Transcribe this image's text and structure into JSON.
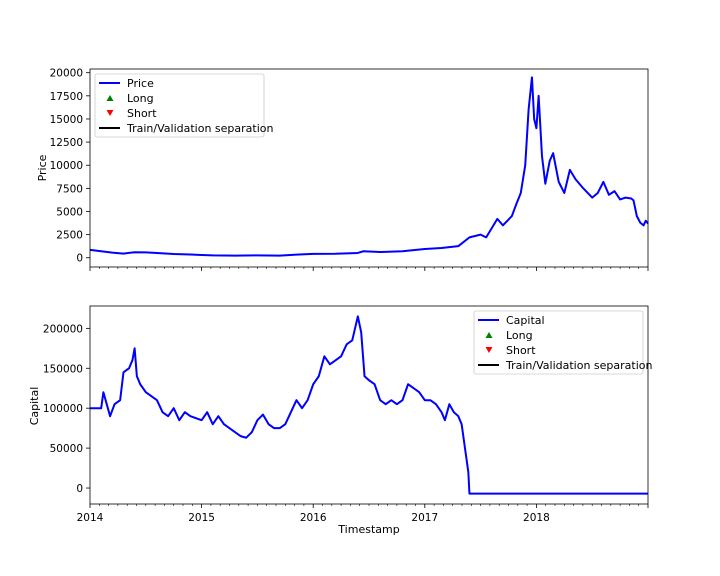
{
  "chart_data": [
    {
      "type": "line",
      "panel": "top",
      "ylabel": "Price",
      "xlabel": "",
      "xlim": [
        2014.0,
        2019.0
      ],
      "ylim": [
        -1000,
        20400
      ],
      "yticks": [
        "0",
        "2500",
        "5000",
        "7500",
        "10000",
        "12500",
        "15000",
        "17500",
        "20000"
      ],
      "ytick_values": [
        0,
        2500,
        5000,
        7500,
        10000,
        12500,
        15000,
        17500,
        20000
      ],
      "legend_position": "upper-left",
      "legend": [
        "Price",
        "Long",
        "Short",
        "Train/Validation separation"
      ],
      "series": [
        {
          "name": "Price",
          "color": "#0000ff",
          "points": [
            [
              2014.0,
              850
            ],
            [
              2014.1,
              700
            ],
            [
              2014.2,
              550
            ],
            [
              2014.3,
              450
            ],
            [
              2014.4,
              600
            ],
            [
              2014.5,
              580
            ],
            [
              2014.6,
              520
            ],
            [
              2014.75,
              400
            ],
            [
              2014.9,
              350
            ],
            [
              2015.0,
              300
            ],
            [
              2015.1,
              250
            ],
            [
              2015.3,
              230
            ],
            [
              2015.5,
              260
            ],
            [
              2015.7,
              230
            ],
            [
              2015.85,
              340
            ],
            [
              2016.0,
              420
            ],
            [
              2016.2,
              430
            ],
            [
              2016.4,
              520
            ],
            [
              2016.45,
              700
            ],
            [
              2016.6,
              620
            ],
            [
              2016.8,
              700
            ],
            [
              2017.0,
              950
            ],
            [
              2017.15,
              1050
            ],
            [
              2017.3,
              1250
            ],
            [
              2017.4,
              2200
            ],
            [
              2017.5,
              2500
            ],
            [
              2017.55,
              2200
            ],
            [
              2017.6,
              3200
            ],
            [
              2017.65,
              4200
            ],
            [
              2017.7,
              3500
            ],
            [
              2017.78,
              4500
            ],
            [
              2017.82,
              5800
            ],
            [
              2017.86,
              7000
            ],
            [
              2017.9,
              10000
            ],
            [
              2017.93,
              16000
            ],
            [
              2017.96,
              19500
            ],
            [
              2017.98,
              15000
            ],
            [
              2018.0,
              14000
            ],
            [
              2018.02,
              17500
            ],
            [
              2018.05,
              11000
            ],
            [
              2018.08,
              8000
            ],
            [
              2018.12,
              10500
            ],
            [
              2018.15,
              11300
            ],
            [
              2018.2,
              8200
            ],
            [
              2018.25,
              7000
            ],
            [
              2018.3,
              9500
            ],
            [
              2018.35,
              8500
            ],
            [
              2018.42,
              7500
            ],
            [
              2018.5,
              6500
            ],
            [
              2018.55,
              7000
            ],
            [
              2018.6,
              8200
            ],
            [
              2018.65,
              6800
            ],
            [
              2018.7,
              7200
            ],
            [
              2018.75,
              6300
            ],
            [
              2018.8,
              6500
            ],
            [
              2018.85,
              6400
            ],
            [
              2018.87,
              6200
            ],
            [
              2018.9,
              4500
            ],
            [
              2018.93,
              3800
            ],
            [
              2018.96,
              3500
            ],
            [
              2018.98,
              4000
            ],
            [
              2019.0,
              3700
            ]
          ]
        }
      ]
    },
    {
      "type": "line",
      "panel": "bottom",
      "ylabel": "Capital",
      "xlabel": "Timestamp",
      "xlim": [
        2014.0,
        2019.0
      ],
      "ylim": [
        -20000,
        228000
      ],
      "xticks": [
        "2014",
        "2015",
        "2016",
        "2017",
        "2018"
      ],
      "xtick_values": [
        2014,
        2015,
        2016,
        2017,
        2018
      ],
      "yticks": [
        "0",
        "50000",
        "100000",
        "150000",
        "200000"
      ],
      "ytick_values": [
        0,
        50000,
        100000,
        150000,
        200000
      ],
      "legend_position": "upper-right",
      "legend": [
        "Capital",
        "Long",
        "Short",
        "Train/Validation separation"
      ],
      "series": [
        {
          "name": "Capital",
          "color": "#0000ff",
          "points": [
            [
              2014.0,
              100000
            ],
            [
              2014.1,
              100000
            ],
            [
              2014.12,
              120000
            ],
            [
              2014.15,
              105000
            ],
            [
              2014.18,
              90000
            ],
            [
              2014.22,
              105000
            ],
            [
              2014.27,
              110000
            ],
            [
              2014.3,
              145000
            ],
            [
              2014.35,
              150000
            ],
            [
              2014.38,
              160000
            ],
            [
              2014.4,
              175000
            ],
            [
              2014.42,
              140000
            ],
            [
              2014.45,
              130000
            ],
            [
              2014.5,
              120000
            ],
            [
              2014.55,
              115000
            ],
            [
              2014.6,
              110000
            ],
            [
              2014.65,
              95000
            ],
            [
              2014.7,
              90000
            ],
            [
              2014.75,
              100000
            ],
            [
              2014.8,
              85000
            ],
            [
              2014.85,
              95000
            ],
            [
              2014.9,
              90000
            ],
            [
              2015.0,
              85000
            ],
            [
              2015.05,
              95000
            ],
            [
              2015.1,
              80000
            ],
            [
              2015.15,
              90000
            ],
            [
              2015.2,
              80000
            ],
            [
              2015.25,
              75000
            ],
            [
              2015.3,
              70000
            ],
            [
              2015.35,
              65000
            ],
            [
              2015.4,
              63000
            ],
            [
              2015.45,
              70000
            ],
            [
              2015.5,
              85000
            ],
            [
              2015.55,
              92000
            ],
            [
              2015.6,
              80000
            ],
            [
              2015.65,
              75000
            ],
            [
              2015.7,
              75000
            ],
            [
              2015.75,
              80000
            ],
            [
              2015.8,
              95000
            ],
            [
              2015.85,
              110000
            ],
            [
              2015.9,
              100000
            ],
            [
              2015.95,
              110000
            ],
            [
              2016.0,
              130000
            ],
            [
              2016.05,
              140000
            ],
            [
              2016.1,
              165000
            ],
            [
              2016.15,
              155000
            ],
            [
              2016.2,
              160000
            ],
            [
              2016.25,
              165000
            ],
            [
              2016.3,
              180000
            ],
            [
              2016.35,
              185000
            ],
            [
              2016.4,
              215000
            ],
            [
              2016.43,
              195000
            ],
            [
              2016.46,
              140000
            ],
            [
              2016.5,
              135000
            ],
            [
              2016.55,
              130000
            ],
            [
              2016.6,
              110000
            ],
            [
              2016.65,
              105000
            ],
            [
              2016.7,
              110000
            ],
            [
              2016.75,
              105000
            ],
            [
              2016.8,
              110000
            ],
            [
              2016.85,
              130000
            ],
            [
              2016.9,
              125000
            ],
            [
              2016.95,
              120000
            ],
            [
              2017.0,
              110000
            ],
            [
              2017.05,
              110000
            ],
            [
              2017.1,
              105000
            ],
            [
              2017.15,
              95000
            ],
            [
              2017.18,
              85000
            ],
            [
              2017.22,
              105000
            ],
            [
              2017.26,
              95000
            ],
            [
              2017.3,
              90000
            ],
            [
              2017.33,
              80000
            ],
            [
              2017.35,
              60000
            ],
            [
              2017.37,
              40000
            ],
            [
              2017.39,
              20000
            ],
            [
              2017.4,
              -7000
            ],
            [
              2019.0,
              -7000
            ]
          ]
        }
      ]
    }
  ]
}
